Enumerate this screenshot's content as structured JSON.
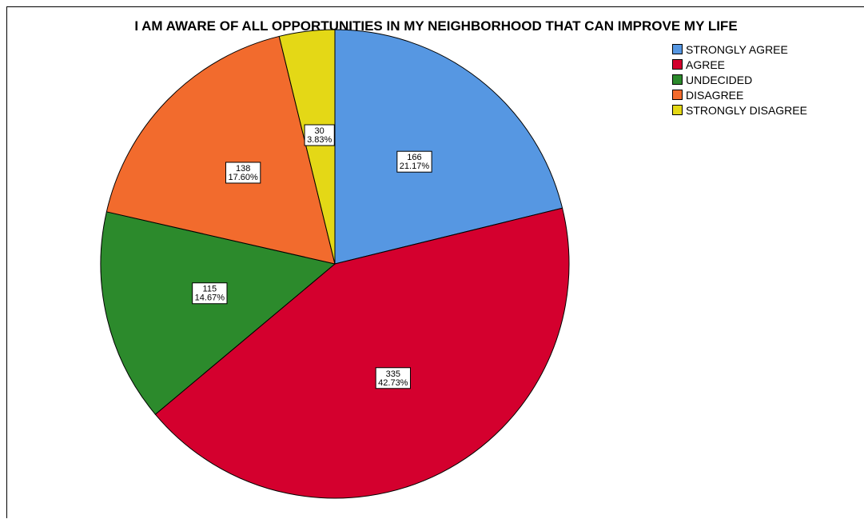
{
  "chart_data": {
    "type": "pie",
    "title": "I AM AWARE OF ALL OPPORTUNITIES IN MY NEIGHBORHOOD THAT CAN IMPROVE MY LIFE",
    "categories": [
      "STRONGLY AGREE",
      "AGREE",
      "UNDECIDED",
      "DISAGREE",
      "STRONGLY DISAGREE"
    ],
    "values": [
      166,
      335,
      115,
      138,
      30
    ],
    "percent_labels": [
      "21.17%",
      "42.73%",
      "14.67%",
      "17.60%",
      "3.83%"
    ],
    "colors": [
      "#5697e2",
      "#d4002e",
      "#2c8a2c",
      "#f26b2d",
      "#e4d816"
    ],
    "legend_position": "top-right",
    "start_angle": "12 o'clock",
    "direction": "clockwise"
  }
}
